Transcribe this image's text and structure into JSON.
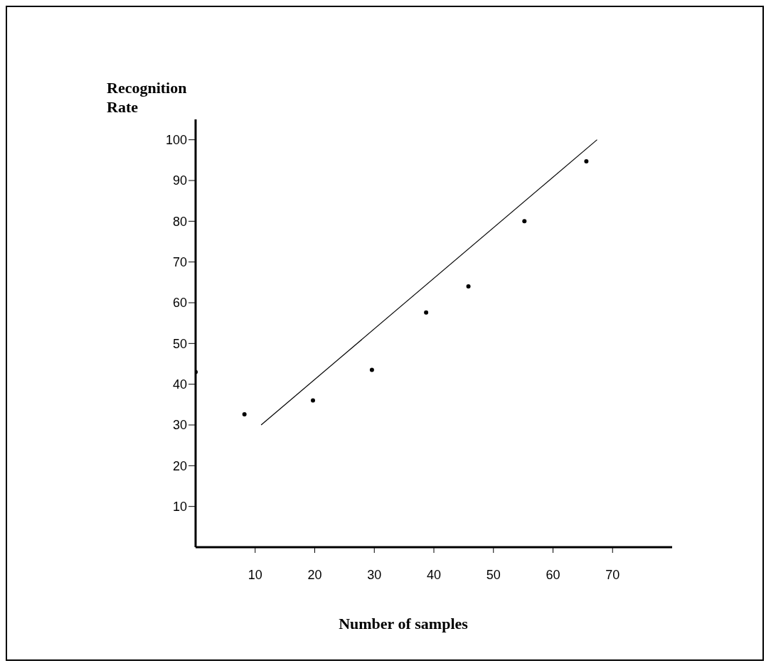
{
  "chart_data": {
    "type": "scatter",
    "xlabel": "Number of samples",
    "ylabel": "Recognition Rate",
    "xlim": [
      0,
      80
    ],
    "xticks": [
      10,
      20,
      30,
      40,
      50,
      60,
      70
    ],
    "ylim": [
      0,
      105
    ],
    "yticks": [
      10,
      20,
      30,
      40,
      50,
      60,
      70,
      80,
      90,
      100
    ],
    "grid": false,
    "legend": false,
    "marker": "circle",
    "series": [
      {
        "color": "#000000",
        "x": [
          0,
          8.2,
          19.7,
          29.6,
          38.7,
          45.8,
          55.2,
          65.6
        ],
        "values": [
          43,
          32.6,
          36,
          43.5,
          57.6,
          64,
          80,
          94.7
        ]
      },
      {
        "type": "line",
        "color": "#000000",
        "marker": "none",
        "line_style": "solid",
        "x": [
          11,
          67.4
        ],
        "values": [
          30,
          100
        ]
      }
    ]
  }
}
